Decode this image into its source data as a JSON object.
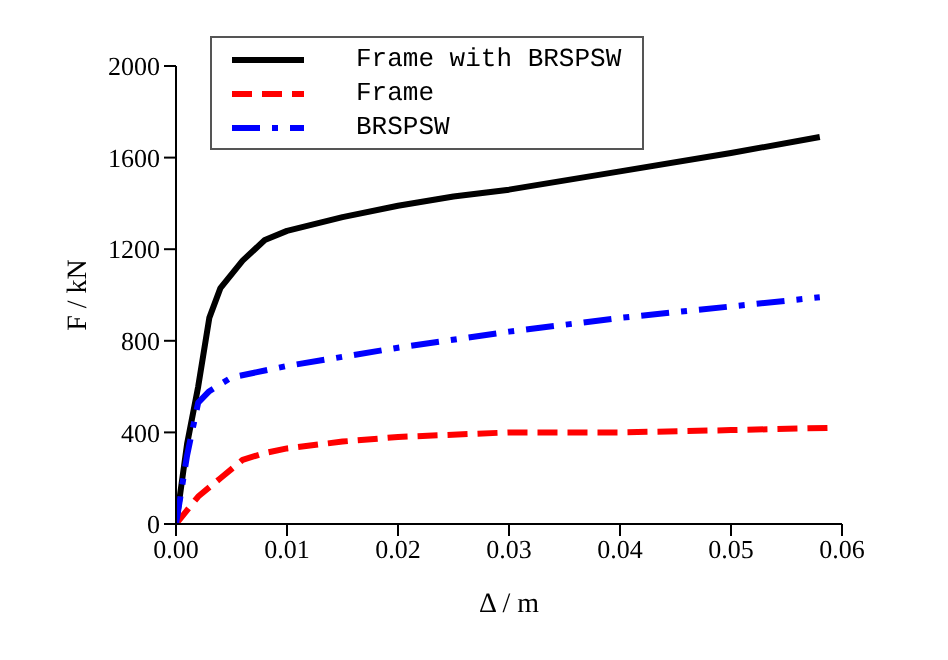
{
  "chart_data": {
    "type": "line",
    "xlabel": "Δ / m",
    "ylabel": "F / kN",
    "xlim": [
      0,
      0.06
    ],
    "xticks": [
      {
        "value": 0,
        "label": "0.00"
      },
      0.01,
      0.02,
      0.03,
      0.04,
      0.05,
      0.06
    ],
    "ylim": [
      0,
      2000
    ],
    "yticks": [
      0,
      400,
      800,
      1200,
      1600,
      2000
    ],
    "grid": false,
    "legend": "top left",
    "marker": "none",
    "series": [
      {
        "name": "Frame with BRSPSW",
        "color": "#000000",
        "line_style": "solid",
        "x": [
          0,
          0.001,
          0.002,
          0.003,
          0.004,
          0.006,
          0.008,
          0.01,
          0.015,
          0.02,
          0.025,
          0.03,
          0.04,
          0.05,
          0.058
        ],
        "values": [
          0,
          350,
          600,
          900,
          1030,
          1150,
          1240,
          1280,
          1340,
          1390,
          1430,
          1460,
          1540,
          1620,
          1690
        ]
      },
      {
        "name": "Frame",
        "color": "#ff0000",
        "line_style": "dashed",
        "x": [
          0,
          0.002,
          0.004,
          0.006,
          0.008,
          0.01,
          0.015,
          0.02,
          0.03,
          0.04,
          0.05,
          0.059
        ],
        "values": [
          0,
          120,
          200,
          280,
          310,
          330,
          360,
          380,
          400,
          400,
          410,
          420
        ]
      },
      {
        "name": "BRSPSW",
        "color": "#0000ff",
        "line_style": "dashdot",
        "x": [
          0,
          0.001,
          0.002,
          0.003,
          0.005,
          0.01,
          0.015,
          0.02,
          0.03,
          0.04,
          0.05,
          0.058
        ],
        "values": [
          0,
          300,
          530,
          580,
          640,
          690,
          730,
          770,
          840,
          900,
          950,
          990
        ]
      }
    ]
  }
}
